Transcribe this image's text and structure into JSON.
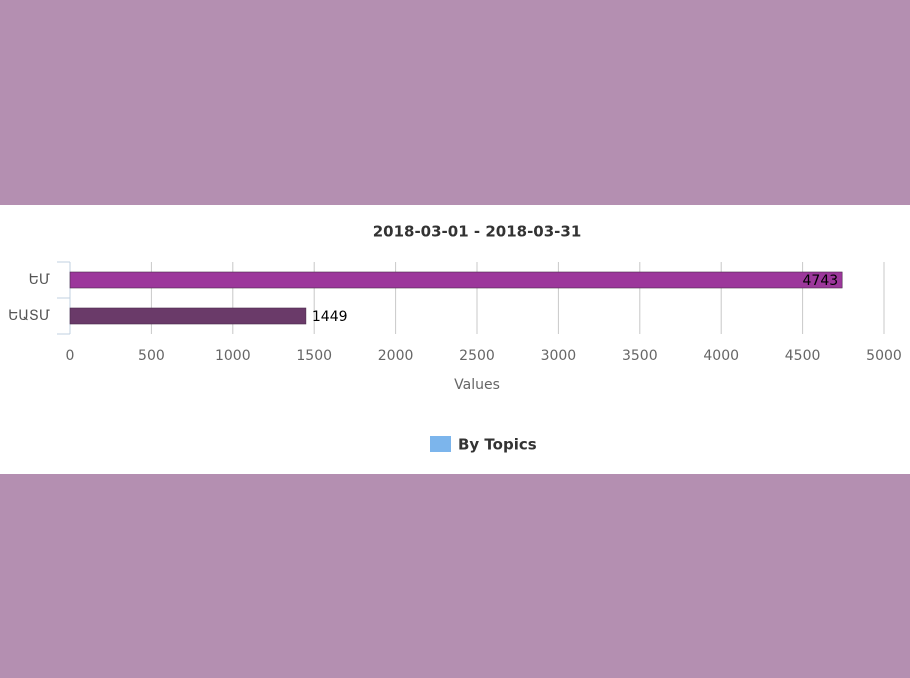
{
  "chart_data": {
    "type": "bar",
    "orientation": "horizontal",
    "title": "2018-03-01 - 2018-03-31",
    "categories": [
      "ԵՄ",
      "ԵԱՏՄ"
    ],
    "series": [
      {
        "name": "By Topics",
        "color": "#7cb5ec",
        "point_colors": [
          "#9c379b",
          "#6a3a69"
        ],
        "values": [
          4743,
          1449
        ]
      }
    ],
    "xlabel": "Values",
    "xlim": [
      0,
      5000
    ],
    "xticks": [
      0,
      500,
      1000,
      1500,
      2000,
      2500,
      3000,
      3500,
      4000,
      4500,
      5000
    ],
    "grid": true
  }
}
